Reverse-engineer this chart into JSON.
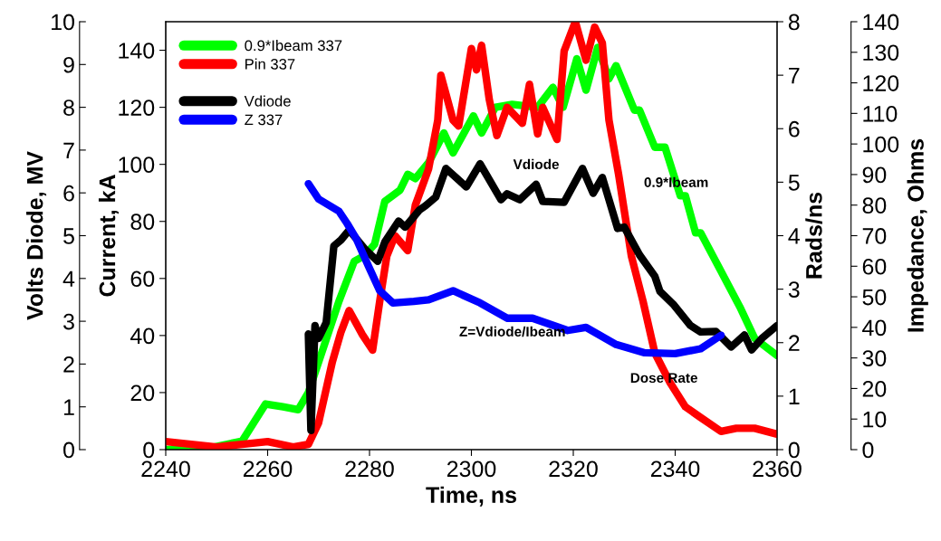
{
  "chart_data": [
    {
      "type": "line",
      "xlabel": "Time, ns",
      "ylabel": "Current, kA",
      "y2label": "Rads/ns",
      "xlim": [
        2240,
        2360
      ],
      "xticks": [
        2240,
        2260,
        2280,
        2300,
        2320,
        2340,
        2360
      ],
      "ylim": [
        0,
        150
      ],
      "yticks": [
        0,
        20,
        40,
        60,
        80,
        100,
        120,
        140
      ],
      "y2lim": [
        0,
        8
      ],
      "y2ticks": [
        0,
        1,
        2,
        3,
        4,
        5,
        6,
        7,
        8
      ],
      "legend": "top left",
      "marker": "none",
      "line_style": "solid",
      "series": [
        {
          "name": "0.9*Ibeam 337",
          "color": "#00ff00",
          "x": [
            2240,
            2247,
            2255,
            2259.6,
            2263,
            2266,
            2268,
            2271,
            2274,
            2277,
            2279,
            2281,
            2283,
            2286,
            2287.5,
            2289,
            2291.6,
            2294.6,
            2296.4,
            2300.4,
            2302,
            2304.7,
            2308,
            2313,
            2316,
            2318,
            2320.7,
            2322.5,
            2324.8,
            2327,
            2328.4,
            2332,
            2333,
            2336,
            2338,
            2341,
            2342,
            2344,
            2345,
            2349,
            2352.7,
            2355.6,
            2360
          ],
          "values": [
            0,
            0,
            3,
            16,
            15,
            14,
            20,
            36,
            52,
            66,
            68,
            72,
            87,
            91,
            96.5,
            95,
            100.6,
            111,
            104,
            117,
            111,
            120,
            121,
            120,
            127,
            120,
            137,
            126,
            141,
            130,
            134.6,
            119,
            119,
            106,
            106,
            89,
            89,
            76,
            76,
            62.5,
            50,
            39,
            33
          ]
        },
        {
          "name": "Pin 337",
          "color": "#ff0000",
          "axis": "y2",
          "x": [
            2240,
            2245,
            2250,
            2255,
            2260,
            2265,
            2268,
            2270,
            2272.7,
            2274.4,
            2276,
            2278.6,
            2280.6,
            2282,
            2283.4,
            2285,
            2287.5,
            2289,
            2291.6,
            2293.4,
            2294,
            2296.4,
            2297.5,
            2300,
            2301,
            2302,
            2303.5,
            2305,
            2307,
            2310,
            2311.4,
            2313,
            2314,
            2316.8,
            2318.2,
            2320.4,
            2322.5,
            2324.2,
            2325.7,
            2327,
            2328.9,
            2331.4,
            2333.7,
            2336,
            2339,
            2342,
            2345,
            2349,
            2352,
            2355.6,
            2360
          ],
          "values": [
            0.15,
            0.1,
            0.05,
            0.1,
            0.15,
            0.05,
            0.1,
            0.5,
            1.64,
            2.2,
            2.6,
            2.15,
            1.86,
            2.77,
            3.62,
            4.0,
            3.72,
            4.57,
            5.25,
            6.16,
            7.0,
            6.16,
            6.05,
            7.5,
            7.1,
            7.56,
            6.55,
            5.87,
            6.4,
            6.1,
            6.83,
            5.9,
            6.4,
            5.8,
            7.45,
            8.0,
            7.28,
            7.9,
            7.6,
            6.16,
            5.14,
            3.62,
            2.77,
            1.81,
            1.25,
            0.8,
            0.6,
            0.34,
            0.4,
            0.4,
            0.29
          ]
        }
      ],
      "annotations": [
        "0.9*Ibeam",
        "Dose Rate"
      ]
    },
    {
      "type": "line",
      "ylabel": "Volts Diode, MV",
      "y2label": "Impedance, Ohms",
      "xlim": [
        2240,
        2360
      ],
      "tick_labels": "y",
      "ylim": [
        0,
        10
      ],
      "yticks": [
        0,
        1,
        2,
        3,
        4,
        5,
        6,
        7,
        8,
        9,
        10
      ],
      "y2lim": [
        0,
        140
      ],
      "y2ticks": [
        0,
        10,
        20,
        30,
        40,
        50,
        60,
        70,
        80,
        90,
        100,
        110,
        120,
        130,
        140
      ],
      "legend": "top left",
      "marker": "none",
      "line_style": "solid",
      "series": [
        {
          "name": "Vdiode",
          "color": "#000000",
          "x": [
            2268,
            2268.5,
            2269.3,
            2270,
            2271.5,
            2273,
            2274.4,
            2276,
            2279,
            2281.6,
            2283,
            2285.7,
            2287,
            2289.8,
            2291,
            2293,
            2295,
            2299,
            2301.7,
            2305.8,
            2307,
            2309.5,
            2312.7,
            2314,
            2318.2,
            2321.8,
            2323.9,
            2325.7,
            2328.7,
            2330,
            2333,
            2336,
            2337,
            2339.6,
            2343,
            2345,
            2348,
            2351,
            2353.6,
            2355,
            2357.2,
            2360
          ],
          "values": [
            2.7,
            0.45,
            2.9,
            2.6,
            2.97,
            4.76,
            4.9,
            5.13,
            4.7,
            4.4,
            4.85,
            5.34,
            5.2,
            5.6,
            5.7,
            5.9,
            6.57,
            6.14,
            6.68,
            5.84,
            5.98,
            5.84,
            6.2,
            5.8,
            5.78,
            6.57,
            5.99,
            6.36,
            5.17,
            5.2,
            4.55,
            4.05,
            3.7,
            3.4,
            2.9,
            2.75,
            2.76,
            2.4,
            2.68,
            2.33,
            2.62,
            2.9
          ]
        },
        {
          "name": "Z 337",
          "color": "#0000ff",
          "axis": "y2",
          "x": [
            2268,
            2270,
            2274,
            2275.6,
            2277.4,
            2279.8,
            2282,
            2284.6,
            2288.7,
            2291.6,
            2296.4,
            2301.7,
            2307,
            2312,
            2318.9,
            2322.5,
            2328.4,
            2334,
            2340,
            2345,
            2349
          ],
          "values": [
            87,
            82,
            78,
            74,
            69,
            60,
            52,
            48,
            48.5,
            49,
            52,
            48,
            43,
            43,
            39,
            40,
            34.4,
            31.7,
            31.4,
            33,
            37.4
          ]
        }
      ],
      "annotations": [
        "Vdiode",
        "Z=Vdiode/Ibeam"
      ]
    }
  ]
}
